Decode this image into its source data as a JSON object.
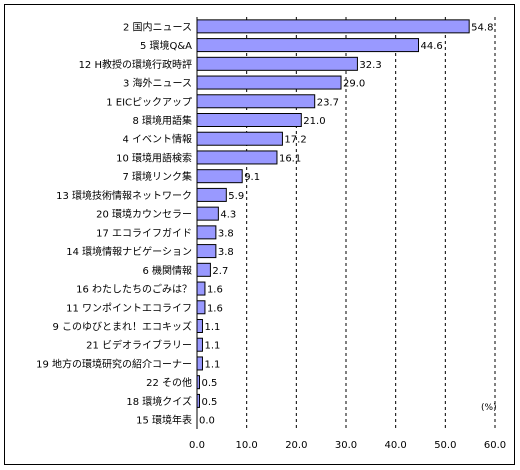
{
  "chart_data": {
    "type": "bar",
    "orientation": "horizontal",
    "categories": [
      "2 国内ニュース",
      "5 環境Q&A",
      "12 H教授の環境行政時評",
      "3 海外ニュース",
      "1 EICピックアップ",
      "8 環境用語集",
      "4 イベント情報",
      "10 環境用語検索",
      "7 環境リンク集",
      "13 環境技術情報ネットワーク",
      "20 環境カウンセラー",
      "17 エコライフガイド",
      "14 環境情報ナビゲーション",
      "6 機関情報",
      "16 わたしたちのごみは？",
      "11 ワンポイントエコライフ",
      "9 このゆびとまれ！エコキッズ",
      "21 ビデオライブラリー",
      "19 地方の環境研究の紹介コーナー",
      "22 その他",
      "18 環境クイズ",
      "15 環境年表"
    ],
    "values": [
      54.8,
      44.6,
      32.3,
      29.0,
      23.7,
      21.0,
      17.2,
      16.1,
      9.1,
      5.9,
      4.3,
      3.8,
      3.8,
      2.7,
      1.6,
      1.6,
      1.1,
      1.1,
      1.1,
      0.5,
      0.5,
      0.0
    ],
    "value_labels": [
      "54.8",
      "44.6",
      "32.3",
      "29.0",
      "23.7",
      "21.0",
      "17.2",
      "16.1",
      "9.1",
      "5.9",
      "4.3",
      "3.8",
      "3.8",
      "2.7",
      "1.6",
      "1.6",
      "1.1",
      "1.1",
      "1.1",
      "0.5",
      "0.5",
      "0.0"
    ],
    "xlim": [
      0,
      60
    ],
    "ticks": [
      "0.0",
      "10.0",
      "20.0",
      "30.0",
      "40.0",
      "50.0",
      "60.0"
    ],
    "tick_values": [
      0,
      10,
      20,
      30,
      40,
      50,
      60
    ],
    "unit_label": "(%)",
    "grid": "vertical dashed",
    "bar_color": "#9999ff",
    "bar_border": "#000000"
  }
}
